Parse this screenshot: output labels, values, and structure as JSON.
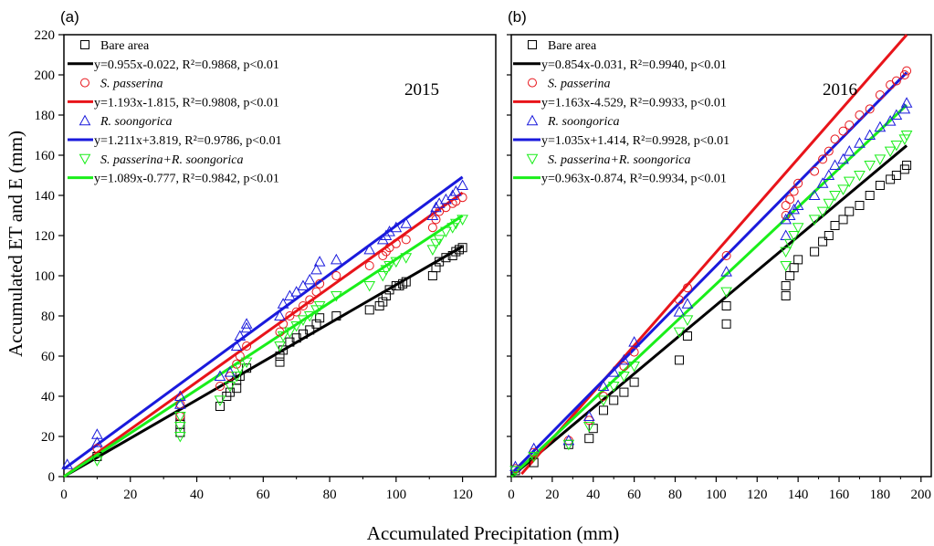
{
  "figure": {
    "xlabel": "Accumulated Precipitation (mm)",
    "ylabel": "Accumulated ET and E (mm)"
  },
  "colors": {
    "bare": "#000000",
    "sp": "#e8141a",
    "rs": "#1a1adc",
    "mix": "#1aee1a"
  },
  "chart_data": [
    {
      "type": "scatter",
      "panel": "(a)",
      "year_label": "2015",
      "xlim": [
        0,
        130
      ],
      "ylim": [
        0,
        220
      ],
      "xticks": [
        0,
        20,
        40,
        60,
        80,
        100,
        120
      ],
      "yticks": [
        0,
        20,
        40,
        60,
        80,
        100,
        120,
        140,
        160,
        180,
        200,
        220
      ],
      "grid": false,
      "legend_position": "top-left",
      "series": [
        {
          "key": "bare",
          "name": "Bare area",
          "marker": "square",
          "fit_label": "y=0.955x-0.022, R²=0.9868, p<0.01",
          "fit": {
            "slope": 0.955,
            "intercept": -0.022,
            "x_range": [
              0,
              120
            ]
          },
          "x": [
            10,
            35,
            35,
            35,
            47,
            49,
            50,
            52,
            52,
            53,
            55,
            65,
            65,
            66,
            68,
            70,
            72,
            74,
            76,
            77,
            82,
            92,
            95,
            96,
            97,
            98,
            100,
            101,
            102,
            103,
            111,
            112,
            113,
            115,
            117,
            118,
            119,
            120
          ],
          "y": [
            10,
            22,
            26,
            30,
            35,
            40,
            42,
            44,
            48,
            50,
            54,
            57,
            60,
            63,
            67,
            69,
            71,
            73,
            76,
            79,
            80,
            83,
            85,
            87,
            90,
            93,
            95,
            95,
            96,
            97,
            100,
            104,
            107,
            109,
            110,
            112,
            113,
            114
          ]
        },
        {
          "key": "sp",
          "name": "S. passerina",
          "italic": true,
          "marker": "circle",
          "fit_label": "y=1.193x-1.815, R²=0.9808, p<0.01",
          "fit": {
            "slope": 1.193,
            "intercept": -1.815,
            "x_range": [
              0,
              120
            ]
          },
          "x": [
            10,
            35,
            35,
            47,
            50,
            52,
            53,
            55,
            65,
            66,
            68,
            70,
            72,
            74,
            76,
            77,
            82,
            92,
            96,
            97,
            98,
            100,
            103,
            111,
            112,
            113,
            115,
            117,
            118,
            120
          ],
          "y": [
            14,
            30,
            36,
            45,
            50,
            56,
            60,
            65,
            72,
            76,
            80,
            82,
            85,
            88,
            92,
            96,
            100,
            105,
            110,
            112,
            114,
            116,
            118,
            124,
            128,
            132,
            134,
            136,
            137,
            139
          ]
        },
        {
          "key": "rs",
          "name": "R. soongorica",
          "italic": true,
          "marker": "triangle",
          "fit_label": "y=1.211x+3.819, R²=0.9786, p<0.01",
          "fit": {
            "slope": 1.211,
            "intercept": 3.819,
            "x_range": [
              0,
              120
            ]
          },
          "x": [
            1,
            10,
            10,
            35,
            35,
            47,
            50,
            52,
            53,
            55,
            55,
            65,
            66,
            68,
            70,
            72,
            74,
            76,
            77,
            82,
            92,
            96,
            97,
            98,
            100,
            103,
            111,
            112,
            113,
            115,
            117,
            118,
            120
          ],
          "y": [
            6,
            17,
            21,
            36,
            40,
            50,
            52,
            65,
            70,
            74,
            76,
            80,
            86,
            90,
            92,
            95,
            98,
            103,
            107,
            108,
            113,
            118,
            120,
            122,
            124,
            126,
            130,
            134,
            136,
            138,
            140,
            142,
            145
          ]
        },
        {
          "key": "mix",
          "name": "S. passerina+R. soongorica",
          "italic": true,
          "marker": "triangle-down",
          "fit_label": "y=1.089x-0.777, R²=0.9842, p<0.01",
          "fit": {
            "slope": 1.089,
            "intercept": -0.777,
            "x_range": [
              0,
              120
            ]
          },
          "x": [
            10,
            35,
            35,
            35,
            47,
            50,
            52,
            53,
            55,
            65,
            66,
            68,
            70,
            72,
            74,
            76,
            77,
            82,
            92,
            96,
            97,
            98,
            100,
            103,
            111,
            112,
            113,
            115,
            117,
            118,
            120
          ],
          "y": [
            8,
            20,
            25,
            30,
            38,
            45,
            50,
            54,
            57,
            65,
            70,
            72,
            75,
            78,
            80,
            83,
            85,
            90,
            95,
            100,
            103,
            105,
            107,
            109,
            113,
            116,
            118,
            122,
            124,
            126,
            128
          ]
        }
      ]
    },
    {
      "type": "scatter",
      "panel": "(b)",
      "year_label": "2016",
      "xlim": [
        0,
        205
      ],
      "ylim": [
        0,
        220
      ],
      "xticks": [
        0,
        20,
        40,
        60,
        80,
        100,
        120,
        140,
        160,
        180,
        200
      ],
      "yticks": [
        0,
        20,
        40,
        60,
        80,
        100,
        120,
        140,
        160,
        180,
        200,
        220
      ],
      "grid": false,
      "legend_position": "top-left",
      "series": [
        {
          "key": "bare",
          "name": "Bare area",
          "marker": "square",
          "fit_label": "y=0.854x-0.031, R²=0.9940, p<0.01",
          "fit": {
            "slope": 0.854,
            "intercept": -0.031,
            "x_range": [
              0,
              193
            ]
          },
          "x": [
            2,
            11,
            28,
            38,
            40,
            45,
            50,
            55,
            60,
            82,
            86,
            105,
            105,
            134,
            134,
            136,
            138,
            140,
            148,
            152,
            155,
            158,
            162,
            165,
            170,
            175,
            180,
            185,
            188,
            192,
            193
          ],
          "y": [
            3,
            7,
            16,
            19,
            24,
            33,
            38,
            42,
            47,
            58,
            70,
            76,
            85,
            90,
            95,
            100,
            104,
            108,
            112,
            117,
            120,
            125,
            128,
            132,
            135,
            140,
            145,
            148,
            150,
            153,
            155
          ]
        },
        {
          "key": "sp",
          "name": "S. passerina",
          "italic": true,
          "marker": "circle",
          "fit_label": "y=1.163x-4.529, R²=0.9933, p<0.01",
          "fit": {
            "slope": 1.163,
            "intercept": -4.529,
            "x_range": [
              5,
              193
            ]
          },
          "x": [
            2,
            11,
            28,
            38,
            45,
            55,
            60,
            82,
            86,
            105,
            134,
            134,
            136,
            138,
            140,
            148,
            152,
            155,
            158,
            162,
            165,
            170,
            175,
            180,
            185,
            188,
            192,
            193
          ],
          "y": [
            4,
            12,
            18,
            28,
            40,
            55,
            62,
            88,
            94,
            110,
            130,
            135,
            138,
            142,
            146,
            152,
            158,
            162,
            168,
            172,
            175,
            180,
            183,
            190,
            195,
            197,
            200,
            202
          ]
        },
        {
          "key": "rs",
          "name": "R. soongorica",
          "italic": true,
          "marker": "triangle",
          "fit_label": "y=1.035x+1.414, R²=0.9928, p<0.01",
          "fit": {
            "slope": 1.035,
            "intercept": 1.414,
            "x_range": [
              0,
              193
            ]
          },
          "x": [
            2,
            11,
            28,
            38,
            45,
            50,
            55,
            60,
            82,
            86,
            105,
            134,
            134,
            136,
            138,
            140,
            148,
            152,
            155,
            158,
            162,
            165,
            170,
            175,
            180,
            185,
            188,
            192,
            193
          ],
          "y": [
            5,
            14,
            18,
            30,
            45,
            52,
            58,
            67,
            82,
            86,
            102,
            120,
            128,
            130,
            133,
            135,
            140,
            146,
            150,
            155,
            158,
            162,
            166,
            170,
            174,
            177,
            180,
            183,
            186
          ]
        },
        {
          "key": "mix",
          "name": "S. passerina+R. soongorica",
          "italic": true,
          "marker": "triangle-down",
          "fit_label": "y=0.963x-0.874, R²=0.9934, p<0.01",
          "fit": {
            "slope": 0.963,
            "intercept": -0.874,
            "x_range": [
              0,
              193
            ]
          },
          "x": [
            2,
            11,
            28,
            38,
            45,
            50,
            55,
            60,
            82,
            86,
            105,
            134,
            134,
            136,
            138,
            140,
            148,
            152,
            155,
            158,
            162,
            165,
            170,
            175,
            180,
            185,
            188,
            192,
            193
          ],
          "y": [
            3,
            10,
            16,
            25,
            38,
            45,
            50,
            55,
            72,
            78,
            92,
            105,
            112,
            116,
            120,
            124,
            128,
            132,
            136,
            140,
            143,
            147,
            150,
            155,
            158,
            162,
            165,
            168,
            170
          ]
        }
      ]
    }
  ]
}
